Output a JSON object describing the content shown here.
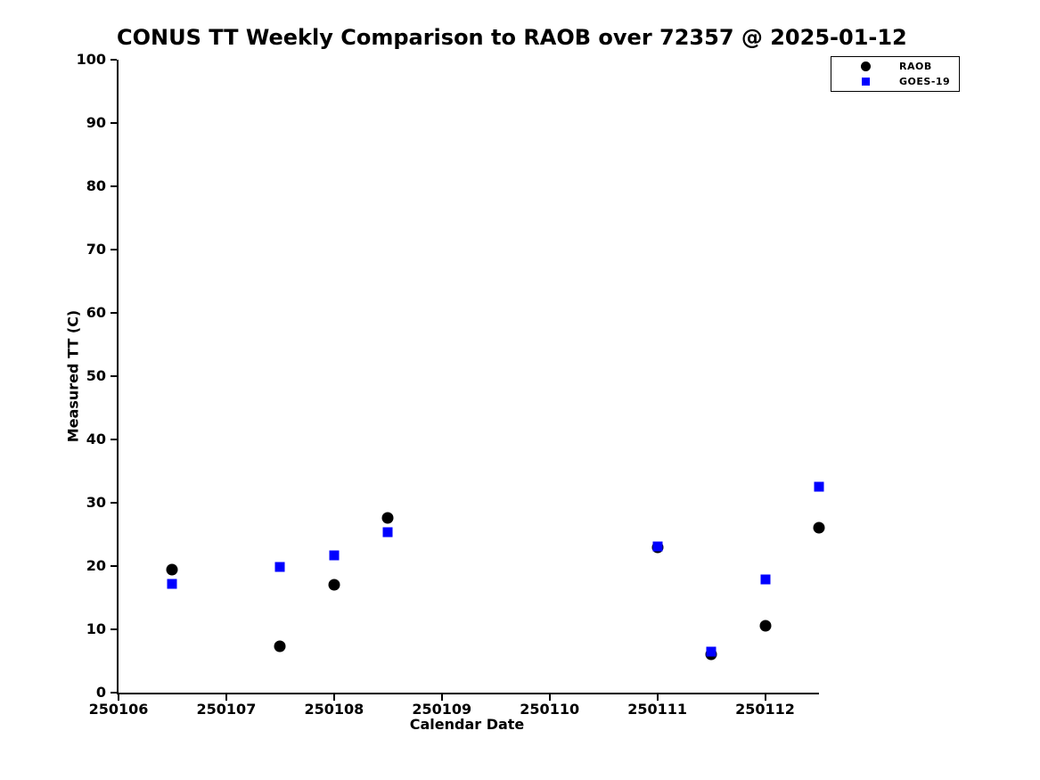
{
  "chart_data": {
    "type": "scatter",
    "title": "CONUS TT Weekly Comparison to RAOB over 72357 @ 2025-01-12",
    "xlabel": "Calendar Date",
    "ylabel": "Measured TT (C)",
    "xlim": [
      250106,
      250112.5
    ],
    "ylim": [
      0,
      100
    ],
    "x_ticks": [
      250106,
      250107,
      250108,
      250109,
      250110,
      250111,
      250112
    ],
    "y_ticks": [
      0,
      10,
      20,
      30,
      40,
      50,
      60,
      70,
      80,
      90,
      100
    ],
    "grid": false,
    "legend": {
      "position": "top-right",
      "entries": [
        {
          "label": "RAOB",
          "marker": "circle",
          "color": "#000000"
        },
        {
          "label": "GOES-19",
          "marker": "square",
          "color": "#0000ff"
        }
      ]
    },
    "series": [
      {
        "name": "RAOB",
        "marker": "circle",
        "color": "#000000",
        "points": [
          [
            250106.5,
            19.4
          ],
          [
            250107.5,
            7.3
          ],
          [
            250108.0,
            17.0
          ],
          [
            250108.5,
            27.6
          ],
          [
            250111.0,
            22.9
          ],
          [
            250111.5,
            6.0
          ],
          [
            250112.0,
            10.5
          ],
          [
            250112.5,
            26.0
          ]
        ]
      },
      {
        "name": "GOES-19",
        "marker": "square",
        "color": "#0000ff",
        "points": [
          [
            250106.5,
            17.2
          ],
          [
            250107.5,
            19.8
          ],
          [
            250108.0,
            21.7
          ],
          [
            250108.5,
            25.3
          ],
          [
            250111.0,
            23.1
          ],
          [
            250111.5,
            6.5
          ],
          [
            250112.0,
            17.9
          ],
          [
            250112.5,
            32.5
          ]
        ]
      }
    ]
  }
}
